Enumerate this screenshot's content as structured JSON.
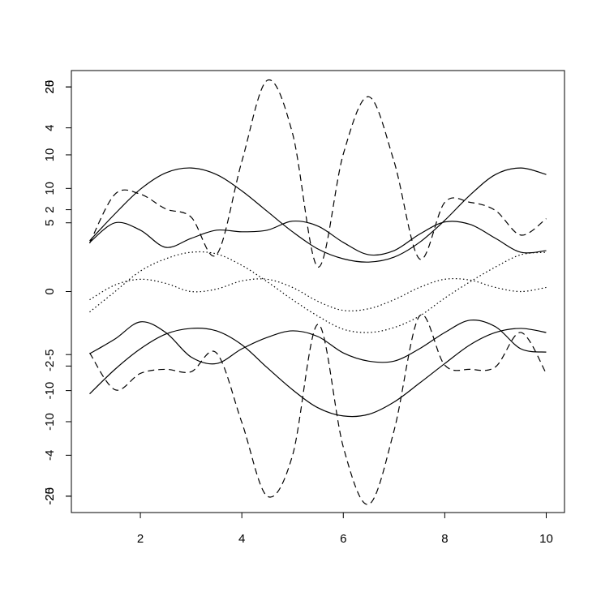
{
  "chart_data": {
    "type": "line",
    "x": [
      1,
      1.5,
      2,
      2.5,
      3,
      3.5,
      4,
      4.5,
      5,
      5.5,
      6,
      6.5,
      7,
      7.5,
      8,
      8.5,
      9,
      9.5,
      10
    ],
    "xlim": [
      0.64,
      10.36
    ],
    "xticks": [
      2,
      4,
      6,
      8,
      10
    ],
    "ylim": [
      -27,
      27
    ],
    "yticks": [
      {
        "value": 25,
        "label": "20"
      },
      {
        "value": 25,
        "label": "25"
      },
      {
        "value": 20,
        "label": "4"
      },
      {
        "value": 16.7,
        "label": "10"
      },
      {
        "value": 12.6,
        "label": "10"
      },
      {
        "value": 10,
        "label": "2"
      },
      {
        "value": 8.4,
        "label": "5"
      },
      0,
      {
        "value": -7.7,
        "label": "-5"
      },
      {
        "value": -9.1,
        "label": "-2"
      },
      {
        "value": -12.1,
        "label": "-10"
      },
      {
        "value": -15.9,
        "label": "-10"
      },
      {
        "value": -20,
        "label": "-4"
      },
      {
        "value": -25,
        "label": "-20"
      },
      {
        "value": -25,
        "label": "-25"
      }
    ],
    "series": [
      {
        "color": "#000000",
        "line_style": "dashed",
        "values": [
          5.9,
          11.9,
          11.9,
          10.1,
          9.1,
          4.5,
          15.9,
          25.8,
          19.3,
          3,
          16.8,
          23.8,
          15.9,
          4,
          10.9,
          10.9,
          9.9,
          6.9,
          8.9
        ]
      },
      {
        "color": "#000000",
        "line_style": "dashed",
        "values": [
          -7.5,
          -12,
          -10,
          -9.5,
          -9.8,
          -7.5,
          -16,
          -25,
          -20,
          -4,
          -19,
          -26,
          -17,
          -3,
          -9,
          -9.5,
          -9.2,
          -5,
          -10
        ]
      },
      {
        "color": "#000000",
        "line_style": "solid",
        "values": [
          6.2,
          9.5,
          12.5,
          14.5,
          15.1,
          14.3,
          12.3,
          9.8,
          7.3,
          5.2,
          4,
          3.6,
          4.2,
          6,
          8.7,
          11.8,
          14.3,
          15.1,
          14.3
        ]
      },
      {
        "color": "#000000",
        "line_style": "solid",
        "values": [
          6,
          8.4,
          7.5,
          5.4,
          6.5,
          7.5,
          7.3,
          7.5,
          8.6,
          8,
          6,
          4.5,
          5,
          7,
          8.5,
          8.2,
          6.5,
          4.8,
          5
        ]
      },
      {
        "color": "#000000",
        "line_style": "solid",
        "values": [
          -12.5,
          -9.5,
          -7,
          -5.2,
          -4.5,
          -4.8,
          -6.5,
          -9.3,
          -12,
          -14.2,
          -15.2,
          -15,
          -13.5,
          -11.2,
          -8.8,
          -6.5,
          -5,
          -4.5,
          -5
        ]
      },
      {
        "color": "#000000",
        "line_style": "solid",
        "values": [
          -7.6,
          -5.8,
          -3.7,
          -5,
          -8,
          -8.8,
          -7,
          -5.6,
          -4.8,
          -5.5,
          -7.5,
          -8.5,
          -8.5,
          -7,
          -5,
          -3.5,
          -4.3,
          -7,
          -7.4
        ]
      },
      {
        "color": "#000000",
        "line_style": "dotted",
        "values": [
          -1,
          0.8,
          1.5,
          1,
          0,
          0.3,
          1.3,
          1.5,
          0.5,
          -1.2,
          -2.3,
          -2.1,
          -1,
          0.5,
          1.5,
          1.4,
          0.5,
          0,
          0.5
        ]
      },
      {
        "color": "#000000",
        "line_style": "dotted",
        "values": [
          -2.5,
          0,
          2.5,
          4,
          4.8,
          4.6,
          3.2,
          1.2,
          -1,
          -3,
          -4.6,
          -5,
          -4.4,
          -3,
          -0.8,
          1.2,
          3,
          4.5,
          4.8
        ]
      }
    ]
  }
}
